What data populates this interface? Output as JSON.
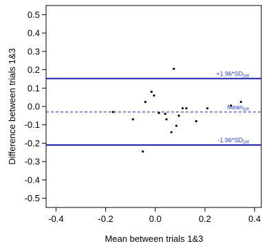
{
  "chart_data": {
    "type": "scatter",
    "xlabel": "Mean between trials 1&3",
    "ylabel": "Difference between trials 1&3",
    "xlim": [
      -0.44,
      0.43
    ],
    "ylim": [
      -0.55,
      0.55
    ],
    "x_ticks": [
      -0.4,
      -0.2,
      0.0,
      0.2,
      0.4
    ],
    "x_tick_labels": [
      "-0.4",
      "-0.2",
      "0.0",
      "0.2",
      "0.4"
    ],
    "y_ticks": [
      0.5,
      0.4,
      0.3,
      0.2,
      0.1,
      0.0,
      -0.1,
      -0.2,
      -0.3,
      -0.4,
      -0.5
    ],
    "y_tick_labels": [
      "0.5",
      "0.4",
      "0.3",
      "0.2",
      "0.1",
      "0.0",
      "-0.1",
      "-0.2",
      "-0.3",
      "-0.4",
      "-0.5"
    ],
    "grid": false,
    "points": [
      {
        "x": -0.17,
        "y": -0.03
      },
      {
        "x": -0.09,
        "y": -0.07
      },
      {
        "x": -0.05,
        "y": -0.245
      },
      {
        "x": -0.04,
        "y": 0.025
      },
      {
        "x": -0.015,
        "y": 0.08
      },
      {
        "x": -0.005,
        "y": 0.06
      },
      {
        "x": 0.015,
        "y": -0.035
      },
      {
        "x": 0.04,
        "y": -0.04
      },
      {
        "x": 0.045,
        "y": -0.07
      },
      {
        "x": 0.065,
        "y": -0.14
      },
      {
        "x": 0.075,
        "y": 0.205
      },
      {
        "x": 0.085,
        "y": -0.105
      },
      {
        "x": 0.095,
        "y": -0.05
      },
      {
        "x": 0.11,
        "y": -0.01
      },
      {
        "x": 0.125,
        "y": -0.01
      },
      {
        "x": 0.165,
        "y": -0.08
      },
      {
        "x": 0.21,
        "y": -0.01
      },
      {
        "x": 0.305,
        "y": 0.005
      },
      {
        "x": 0.345,
        "y": 0.025
      }
    ],
    "reference_lines": [
      {
        "y": 0.152,
        "style": "solid",
        "label_main": "+1.96*SD",
        "label_sub": "Diff"
      },
      {
        "y": -0.03,
        "style": "dashed",
        "label_main": "Mean",
        "label_sub": "Diff"
      },
      {
        "y": -0.21,
        "style": "solid",
        "label_main": "-1.96*SD",
        "label_sub": "Diff"
      }
    ],
    "line_color": "#1a1aa6",
    "label_color": "#2b3fd4",
    "point_color": "#000000"
  }
}
